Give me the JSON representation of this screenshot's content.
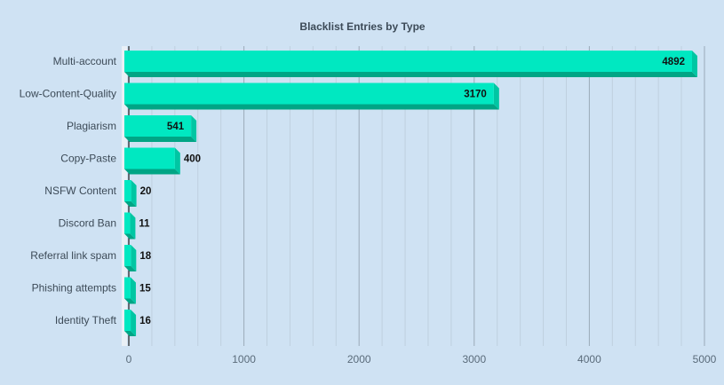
{
  "chart_data": {
    "type": "bar",
    "orientation": "horizontal",
    "title": "Blacklist Entries by Type",
    "categories": [
      "Multi-account",
      "Low-Content-Quality",
      "Plagiarism",
      "Copy-Paste",
      "NSFW Content",
      "Discord Ban",
      "Referral link spam",
      "Phishing attempts",
      "Identity Theft"
    ],
    "values": [
      4892,
      3170,
      541,
      400,
      20,
      11,
      18,
      15,
      16
    ],
    "xlabel": "",
    "ylabel": "",
    "xlim": [
      0,
      5000
    ],
    "xticks": [
      0,
      1000,
      2000,
      3000,
      4000,
      5000
    ],
    "grid": true,
    "legend": "none",
    "bar_style": "3d",
    "colors": {
      "bar_face": "#00e8c1",
      "bar_bottom": "#00a585",
      "bar_side": "#00c6a3",
      "grid_major": "#9aaab8",
      "grid_minor": "#bfd0df",
      "background": "#cfe2f3"
    }
  }
}
